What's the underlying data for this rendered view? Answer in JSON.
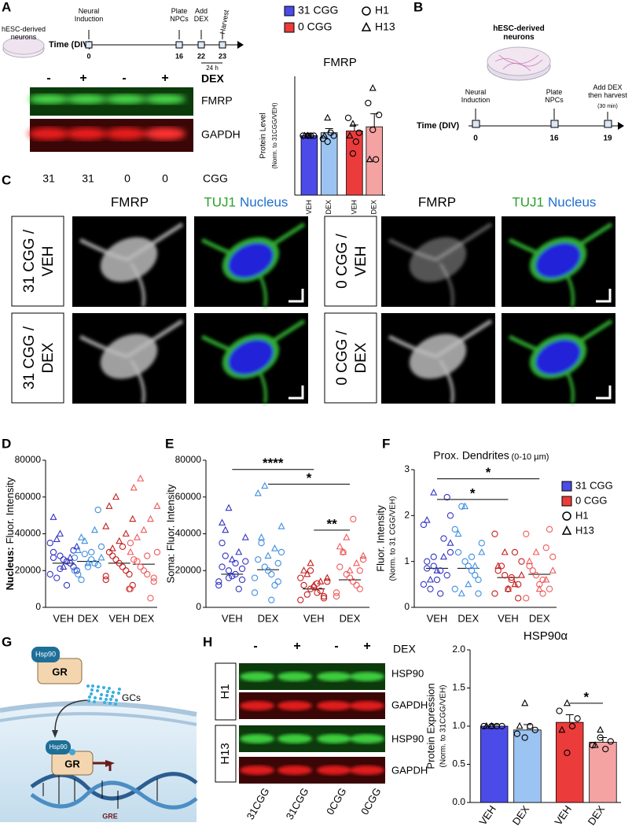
{
  "panel_labels": [
    "A",
    "B",
    "C",
    "D",
    "E",
    "F",
    "G",
    "H"
  ],
  "A": {
    "dish": "hESC-derived neurons",
    "time": "Time (DIV)",
    "steps": [
      {
        "label": "Neural Induction",
        "day": "0"
      },
      {
        "label": "Plate NPCs",
        "day": "16"
      },
      {
        "label": "Add DEX",
        "day": "22"
      },
      {
        "label": "Harvest",
        "day": "23"
      }
    ],
    "interval": "24 h",
    "blot": {
      "dex": [
        "-",
        "+",
        "-",
        "+"
      ],
      "dex_label": "DEX",
      "bands": [
        "FMRP",
        "GAPDH"
      ],
      "cgg": [
        "31",
        "31",
        "0",
        "0"
      ],
      "cgg_label": "CGG"
    }
  },
  "B": {
    "dish": "hESC-derived neurons",
    "time": "Time (DIV)",
    "steps": [
      {
        "label": "Neural Induction",
        "day": "0"
      },
      {
        "label": "Plate NPCs",
        "day": "16"
      },
      {
        "label": "Add DEX then harvest",
        "day": "19"
      }
    ],
    "note": "(30 min)"
  },
  "C": {
    "headers": [
      {
        "stain": "FMRP"
      },
      {
        "tuj1": "TUJ1",
        "nucleus": "Nucleus"
      },
      {
        "stain": "FMRP"
      },
      {
        "tuj1": "TUJ1",
        "nucleus": "Nucleus"
      }
    ],
    "rows": [
      [
        "31 CGG /",
        "VEH"
      ],
      [
        "31 CGG /",
        "DEX"
      ],
      [
        "0 CGG /",
        "VEH"
      ],
      [
        "0 CGG /",
        "DEX"
      ]
    ]
  },
  "G": {
    "hsp90_top": "Hsp90",
    "gr_top": "GR",
    "gcs": "GCs",
    "hsp90_bottom": "Hsp90",
    "gr_bottom": "GR",
    "gre": "GRE"
  },
  "H": {
    "dex": [
      "-",
      "+",
      "-",
      "+"
    ],
    "dex_label": "DEX",
    "lines": [
      "H1",
      "H13"
    ],
    "bands": [
      "HSP90",
      "GAPDH",
      "HSP90",
      "GAPDH"
    ],
    "lanes": [
      "31CGG",
      "31CGG",
      "0CGG",
      "0CGG"
    ]
  },
  "charts": [
    {
      "type": "bar",
      "title": "FMRP",
      "ylabel": "Protein Level",
      "ylabel2": "(Norm. to 31CGG/VEH)",
      "categories": [
        "VEH",
        "DEX",
        "VEH",
        "DEX"
      ],
      "colors": [
        "#4b4be8",
        "#9cc4f2",
        "#ec3b3b",
        "#f4a2a2"
      ],
      "values": [
        1.0,
        1.05,
        1.08,
        1.15
      ],
      "errors": [
        0.03,
        0.07,
        0.1,
        0.22
      ],
      "ylim": [
        0,
        2
      ],
      "dots_colored": false,
      "dots": [
        {
          "name": "H1",
          "marker": "circle",
          "values": [
            [
              1,
              1,
              1,
              1
            ],
            [
              0.95,
              1.0,
              1.05,
              0.9
            ],
            [
              1.3,
              1.05,
              0.9,
              0.7
            ],
            [
              1.55,
              1.35,
              0.6,
              1.1
            ]
          ]
        },
        {
          "name": "H13",
          "marker": "triangle",
          "values": [
            [
              1,
              1
            ],
            [
              1.3,
              1.0
            ],
            [
              1.2,
              1.0
            ],
            [
              1.8,
              0.6
            ]
          ]
        }
      ],
      "legend": [
        {
          "name": "31 CGG",
          "color": "#4b4be8",
          "marker": "square"
        },
        {
          "name": "0 CGG",
          "color": "#ec3b3b",
          "marker": "square"
        },
        {
          "name": "H1",
          "color": "#000",
          "marker": "circle"
        },
        {
          "name": "H13",
          "color": "#000",
          "marker": "triangle"
        }
      ]
    },
    {
      "type": "scatter",
      "ylabel_lead": "Nucleus:",
      "ylabel": "Fluor. Intensity",
      "categories": [
        "VEH",
        "DEX",
        "VEH",
        "DEX"
      ],
      "colors": [
        "#3434c4",
        "#3f8ee0",
        "#c41e1e",
        "#ef5a5a"
      ],
      "ylim": [
        0,
        80000
      ],
      "yticks": [
        0,
        20000,
        40000,
        60000,
        80000
      ],
      "dots_colored": true,
      "medians": [
        24000,
        25000,
        24000,
        23500
      ],
      "dots": [
        {
          "name": "H1",
          "marker": "circle",
          "values": [
            [
              18000,
              22000,
              25000,
              28000,
              30000,
              20000,
              24000,
              26000,
              16000,
              35000,
              31000,
              12000,
              21000,
              27000
            ],
            [
              20000,
              23000,
              26000,
              29000,
              18000,
              33000,
              24000,
              22000,
              15000,
              27000,
              53000,
              30000
            ],
            [
              15000,
              18000,
              22000,
              26000,
              30000,
              12000,
              20000,
              24000,
              28000,
              17000,
              10000,
              33000
            ],
            [
              10000,
              14000,
              18000,
              22000,
              26000,
              30000,
              5000,
              20000,
              25000,
              35000,
              16000,
              28000
            ]
          ]
        },
        {
          "name": "H13",
          "marker": "triangle",
          "values": [
            [
              40000,
              49000,
              33000,
              27000,
              22000,
              37000
            ],
            [
              36000,
              31000,
              27000,
              42000,
              24000,
              38000
            ],
            [
              60000,
              55000,
              48000,
              40000,
              36000,
              32000,
              44000
            ],
            [
              70000,
              65000,
              55000,
              48000,
              42000,
              38000,
              30000
            ]
          ]
        }
      ]
    },
    {
      "type": "scatter",
      "ylabel": "Soma: Fluor. Intensity",
      "categories": [
        "VEH",
        "DEX",
        "VEH",
        "DEX"
      ],
      "colors": [
        "#3434c4",
        "#3f8ee0",
        "#c41e1e",
        "#ef5a5a"
      ],
      "ylim": [
        0,
        80000
      ],
      "yticks": [
        0,
        20000,
        40000,
        60000,
        80000
      ],
      "dots_colored": true,
      "medians": [
        18000,
        20500,
        10000,
        15000
      ],
      "dots": [
        {
          "name": "H1",
          "marker": "circle",
          "values": [
            [
              12000,
              15000,
              18000,
              20000,
              22000,
              25000,
              10000,
              17000,
              28000,
              14000,
              21000,
              24000,
              16000,
              35000
            ],
            [
              8000,
              14000,
              18000,
              22000,
              26000,
              30000,
              12000,
              20000,
              35000,
              16000,
              24000,
              4000
            ],
            [
              4000,
              6000,
              8000,
              10000,
              12000,
              14000,
              9000,
              11000,
              7000,
              16000,
              5000,
              13000,
              20000
            ],
            [
              6000,
              10000,
              14000,
              18000,
              22000,
              26000,
              12000,
              16000,
              30000,
              8000,
              20000,
              48000
            ]
          ]
        },
        {
          "name": "H13",
          "marker": "triangle",
          "values": [
            [
              54000,
              46000,
              38000,
              30000,
              26000,
              42000
            ],
            [
              66000,
              62000,
              44000,
              32000,
              28000,
              38000
            ],
            [
              24000,
              20000,
              16000,
              14000,
              12000,
              18000
            ],
            [
              38000,
              33000,
              28000,
              24000,
              20000,
              30000
            ]
          ]
        }
      ],
      "annotations": [
        {
          "label": "****",
          "from": 0,
          "to": 2,
          "y": 75000
        },
        {
          "label": "*",
          "from": 1,
          "to": 3,
          "y": 67000
        },
        {
          "label": "**",
          "from": 2,
          "to": 3,
          "y": 42000
        }
      ]
    },
    {
      "type": "scatter",
      "title": "Prox. Dendrites",
      "title_note": "(0-10 µm)",
      "ylabel": "Fluor. Intensity",
      "ylabel2": "(Norm. to 31 CGG/VEH)",
      "categories": [
        "VEH",
        "DEX",
        "VEH",
        "DEX"
      ],
      "colors": [
        "#3434c4",
        "#3f8ee0",
        "#c41e1e",
        "#ef5a5a"
      ],
      "ylim": [
        0,
        3
      ],
      "yticks": [
        0,
        1,
        2,
        3
      ],
      "dots_colored": true,
      "medians": [
        0.85,
        0.85,
        0.65,
        0.72
      ],
      "dots": [
        {
          "name": "H1",
          "marker": "circle",
          "values": [
            [
              0.5,
              0.7,
              0.8,
              0.9,
              1.0,
              1.2,
              1.5,
              0.6,
              0.4,
              1.8,
              2.4,
              0.3,
              1.1,
              0.85,
              2.0
            ],
            [
              0.4,
              0.6,
              0.8,
              1.0,
              1.2,
              1.4,
              0.7,
              0.9,
              2.2,
              1.7,
              0.3,
              1.1
            ],
            [
              0.3,
              0.5,
              0.6,
              0.7,
              0.8,
              1.0,
              1.2,
              0.4,
              0.9,
              1.6,
              0.2,
              0.65
            ],
            [
              0.2,
              0.4,
              0.6,
              0.7,
              0.9,
              1.1,
              1.3,
              0.5,
              0.8,
              1.6,
              1.7,
              0.3
            ]
          ]
        },
        {
          "name": "H13",
          "marker": "triangle",
          "values": [
            [
              2.5,
              1.9,
              1.4,
              1.1,
              0.8,
              0.6
            ],
            [
              2.2,
              1.6,
              1.2,
              0.9,
              0.5,
              0.3
            ],
            [
              1.2,
              0.9,
              0.7,
              0.5,
              0.4
            ],
            [
              1.2,
              1.0,
              0.8,
              0.6,
              0.4
            ]
          ]
        }
      ],
      "annotations": [
        {
          "label": "*",
          "from": 0,
          "to": 3,
          "y": 2.8
        },
        {
          "label": "*",
          "from": 0,
          "to": 2,
          "y": 2.35
        }
      ],
      "legend": [
        {
          "name": "31 CGG",
          "color": "#4b4be8",
          "marker": "square"
        },
        {
          "name": "0 CGG",
          "color": "#ec3b3b",
          "marker": "square"
        },
        {
          "name": "H1",
          "color": "#000",
          "marker": "circle"
        },
        {
          "name": "H13",
          "color": "#000",
          "marker": "triangle"
        }
      ]
    },
    {
      "type": "bar",
      "title": "HSP90α",
      "ylabel": "Protein Expression",
      "ylabel2": "(Norm. to 31CGG/VEH)",
      "categories": [
        "VEH",
        "DEX",
        "VEH",
        "DEX"
      ],
      "colors": [
        "#4b4be8",
        "#9cc4f2",
        "#ec3b3b",
        "#f4a2a2"
      ],
      "values": [
        1.0,
        0.95,
        1.05,
        0.79
      ],
      "errors": [
        0.02,
        0.07,
        0.1,
        0.06
      ],
      "ylim": [
        0,
        2
      ],
      "yticks": [
        {
          "value": 0,
          "label": "0.0"
        },
        {
          "value": 0.5,
          "label": "0.5"
        },
        {
          "value": 1,
          "label": "1.0"
        },
        {
          "value": 1.5,
          "label": "1.5"
        },
        {
          "value": 2,
          "label": "2.0"
        }
      ],
      "rotate_labels": true,
      "dots_colored": false,
      "dots": [
        {
          "name": "H1",
          "marker": "circle",
          "values": [
            [
              1,
              1,
              1,
              1
            ],
            [
              0.9,
              0.95,
              1.0,
              0.85
            ],
            [
              1.2,
              1.1,
              1.0,
              0.65
            ],
            [
              0.75,
              0.8,
              0.7,
              0.85
            ]
          ]
        },
        {
          "name": "H13",
          "marker": "triangle",
          "values": [
            [
              1,
              1
            ],
            [
              1.3,
              1.0
            ],
            [
              1.3,
              0.95
            ],
            [
              0.95,
              0.75
            ]
          ]
        }
      ],
      "annotations": [
        {
          "label": "*",
          "from": 2,
          "to": 3,
          "y": 1.3
        }
      ]
    }
  ]
}
